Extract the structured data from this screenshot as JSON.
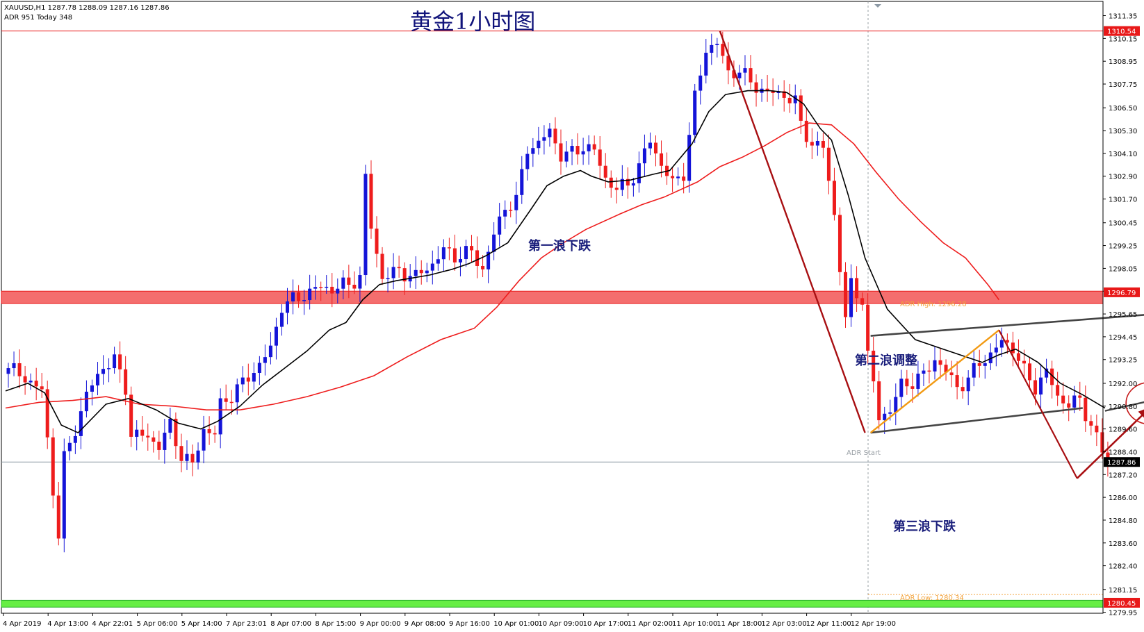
{
  "header": {
    "symbol_line": "XAUUSD,H1  1287.78 1288.09 1287.16 1287.86",
    "adr_line": "ADR 951  Today 348"
  },
  "title": "黄金1小时图",
  "annotations": {
    "wave1": "第一浪下跌",
    "wave2": "第二浪调整",
    "wave3": "第三浪下跌"
  },
  "adr": {
    "high_label": "ADR High: 1296.28",
    "start_label": "ADR Start",
    "low_label": "ADR Low: 1280.34"
  },
  "colors": {
    "bull": "#1414d8",
    "bear": "#ee1c1c",
    "ma_fast": "#000000",
    "ma_slow": "#ee1c1c",
    "resistance_band": "#f46e6e",
    "support_band": "#66ee44",
    "wave_arrow": "#a80f12",
    "channel": "#444444",
    "sub_wave": "#f29a12"
  },
  "chart_data": {
    "type": "candlestick",
    "symbol": "XAUUSD",
    "timeframe": "H1",
    "ylim": [
      1279.9,
      1312.1
    ],
    "yticks": [
      1311.35,
      1310.15,
      1308.95,
      1307.75,
      1306.5,
      1305.3,
      1304.1,
      1302.9,
      1301.7,
      1300.45,
      1299.25,
      1298.05,
      1296.85,
      1295.65,
      1294.45,
      1293.25,
      1292.0,
      1290.8,
      1289.6,
      1288.4,
      1287.2,
      1286.0,
      1284.8,
      1283.6,
      1282.4,
      1281.15,
      1279.95
    ],
    "ytick_labels": [
      "1311.35",
      "1310.15",
      "1308.95",
      "1307.75",
      "1306.50",
      "1305.30",
      "1304.10",
      "1302.90",
      "1301.70",
      "1300.45",
      "1299.25",
      "1298.05",
      "1296.85",
      "1295.65",
      "1294.45",
      "1293.25",
      "1292.00",
      "1290.80",
      "1289.60",
      "1288.40",
      "1287.20",
      "1286.00",
      "1284.80",
      "1283.60",
      "1282.40",
      "1281.15",
      "1279.95"
    ],
    "xtick_labels": [
      "4 Apr 2019",
      "4 Apr 13:00",
      "4 Apr 22:01",
      "5 Apr 06:00",
      "5 Apr 14:00",
      "7 Apr 23:01",
      "8 Apr 07:00",
      "8 Apr 15:00",
      "9 Apr 00:00",
      "9 Apr 08:00",
      "9 Apr 16:00",
      "10 Apr 01:00",
      "10 Apr 09:00",
      "10 Apr 17:00",
      "11 Apr 02:00",
      "11 Apr 10:00",
      "11 Apr 18:00",
      "12 Apr 03:00",
      "12 Apr 11:00",
      "12 Apr 19:00"
    ],
    "price_labels": [
      {
        "value": 1310.54,
        "text": "1310.54",
        "style": "red"
      },
      {
        "value": 1296.79,
        "text": "1296.79",
        "style": "red"
      },
      {
        "value": 1287.86,
        "text": "1287.86",
        "style": "black"
      },
      {
        "value": 1280.45,
        "text": "1280.45",
        "style": "red"
      }
    ],
    "levels": {
      "resistance_line": 1310.54,
      "resistance_band": [
        1296.2,
        1296.85
      ],
      "support_band": [
        1280.22,
        1280.58
      ],
      "current_price": 1287.86,
      "adr_low": 1280.9
    },
    "anchor_points": [
      [
        0,
        1292.8
      ],
      [
        3,
        1292.3
      ],
      [
        6,
        1291.6
      ],
      [
        8,
        1286.4
      ],
      [
        9,
        1284.0
      ],
      [
        10,
        1288.0
      ],
      [
        12,
        1289.6
      ],
      [
        14,
        1291.4
      ],
      [
        17,
        1292.9
      ],
      [
        19,
        1293.2
      ],
      [
        21,
        1291.8
      ],
      [
        22,
        1289.3
      ],
      [
        25,
        1289.2
      ],
      [
        27,
        1288.7
      ],
      [
        29,
        1289.8
      ],
      [
        31,
        1288.2
      ],
      [
        33,
        1287.7
      ],
      [
        35,
        1289.6
      ],
      [
        37,
        1289.3
      ],
      [
        38,
        1290.9
      ],
      [
        40,
        1291.4
      ],
      [
        42,
        1292.0
      ],
      [
        45,
        1293.0
      ],
      [
        47,
        1293.8
      ],
      [
        49,
        1296.1
      ],
      [
        52,
        1296.5
      ],
      [
        55,
        1297.0
      ],
      [
        58,
        1297.0
      ],
      [
        61,
        1297.2
      ],
      [
        63,
        1297.6
      ],
      [
        64,
        1302.8
      ],
      [
        65,
        1300.2
      ],
      [
        66,
        1298.8
      ],
      [
        67,
        1297.6
      ],
      [
        70,
        1297.9
      ],
      [
        73,
        1297.6
      ],
      [
        76,
        1298.3
      ],
      [
        78,
        1299.0
      ],
      [
        80,
        1298.7
      ],
      [
        83,
        1298.9
      ],
      [
        85,
        1298.0
      ],
      [
        87,
        1299.8
      ],
      [
        89,
        1301.3
      ],
      [
        91,
        1301.6
      ],
      [
        93,
        1304.4
      ],
      [
        95,
        1304.6
      ],
      [
        97,
        1305.3
      ],
      [
        99,
        1304.0
      ],
      [
        101,
        1304.1
      ],
      [
        103,
        1304.5
      ],
      [
        105,
        1304.2
      ],
      [
        107,
        1302.8
      ],
      [
        109,
        1302.2
      ],
      [
        111,
        1302.5
      ],
      [
        113,
        1303.4
      ],
      [
        115,
        1304.8
      ],
      [
        117,
        1303.5
      ],
      [
        119,
        1302.5
      ],
      [
        121,
        1303.1
      ],
      [
        123,
        1307.0
      ],
      [
        125,
        1309.6
      ],
      [
        127,
        1309.9
      ],
      [
        129,
        1308.3
      ],
      [
        131,
        1308.5
      ],
      [
        133,
        1307.8
      ],
      [
        136,
        1307.3
      ],
      [
        139,
        1307.2
      ],
      [
        141,
        1306.8
      ],
      [
        142,
        1305.6
      ],
      [
        144,
        1304.6
      ],
      [
        146,
        1304.4
      ],
      [
        148,
        1300.9
      ],
      [
        150,
        1295.3
      ],
      [
        151,
        1297.2
      ],
      [
        153,
        1296.4
      ],
      [
        154,
        1293.4
      ],
      [
        155,
        1292.0
      ],
      [
        156,
        1290.2
      ],
      [
        158,
        1290.6
      ],
      [
        160,
        1291.9
      ],
      [
        162,
        1292.1
      ],
      [
        164,
        1292.4
      ],
      [
        166,
        1293.3
      ],
      [
        168,
        1292.6
      ],
      [
        170,
        1291.8
      ],
      [
        172,
        1292.2
      ],
      [
        174,
        1293.1
      ],
      [
        176,
        1293.5
      ],
      [
        178,
        1294.2
      ],
      [
        180,
        1293.9
      ],
      [
        182,
        1292.6
      ],
      [
        184,
        1291.8
      ],
      [
        186,
        1292.6
      ],
      [
        188,
        1291.3
      ],
      [
        190,
        1290.9
      ],
      [
        192,
        1291.1
      ],
      [
        194,
        1289.8
      ],
      [
        196,
        1288.4
      ],
      [
        197,
        1287.86
      ]
    ],
    "ma_fast_points": [
      [
        0,
        1291.6
      ],
      [
        4,
        1292.0
      ],
      [
        7,
        1291.5
      ],
      [
        10,
        1289.8
      ],
      [
        13,
        1289.4
      ],
      [
        18,
        1290.9
      ],
      [
        22,
        1291.2
      ],
      [
        27,
        1290.6
      ],
      [
        31,
        1289.9
      ],
      [
        35,
        1289.6
      ],
      [
        38,
        1290.0
      ],
      [
        42,
        1290.8
      ],
      [
        46,
        1291.9
      ],
      [
        50,
        1292.8
      ],
      [
        54,
        1293.7
      ],
      [
        58,
        1294.8
      ],
      [
        61,
        1295.2
      ],
      [
        64,
        1296.4
      ],
      [
        67,
        1297.2
      ],
      [
        70,
        1297.4
      ],
      [
        76,
        1297.7
      ],
      [
        80,
        1298.0
      ],
      [
        83,
        1298.3
      ],
      [
        86,
        1298.7
      ],
      [
        90,
        1299.4
      ],
      [
        94,
        1301.1
      ],
      [
        97,
        1302.4
      ],
      [
        100,
        1302.9
      ],
      [
        103,
        1303.2
      ],
      [
        105,
        1302.9
      ],
      [
        108,
        1302.6
      ],
      [
        112,
        1302.7
      ],
      [
        116,
        1303.0
      ],
      [
        119,
        1303.2
      ],
      [
        123,
        1304.6
      ],
      [
        126,
        1306.3
      ],
      [
        129,
        1307.2
      ],
      [
        133,
        1307.4
      ],
      [
        137,
        1307.4
      ],
      [
        140,
        1307.3
      ],
      [
        143,
        1306.7
      ],
      [
        146,
        1305.4
      ],
      [
        148,
        1304.8
      ],
      [
        151,
        1301.9
      ],
      [
        154,
        1298.6
      ],
      [
        158,
        1295.9
      ],
      [
        163,
        1294.3
      ],
      [
        168,
        1293.8
      ],
      [
        172,
        1293.4
      ],
      [
        175,
        1293.1
      ],
      [
        178,
        1293.5
      ],
      [
        181,
        1293.8
      ],
      [
        185,
        1293.1
      ],
      [
        189,
        1292.0
      ],
      [
        193,
        1291.4
      ],
      [
        197,
        1290.7
      ]
    ],
    "ma_slow_points": [
      [
        0,
        1290.7
      ],
      [
        6,
        1291.0
      ],
      [
        12,
        1291.1
      ],
      [
        18,
        1291.3
      ],
      [
        24,
        1290.9
      ],
      [
        30,
        1290.8
      ],
      [
        36,
        1290.6
      ],
      [
        42,
        1290.6
      ],
      [
        48,
        1290.9
      ],
      [
        54,
        1291.3
      ],
      [
        60,
        1291.8
      ],
      [
        66,
        1292.4
      ],
      [
        72,
        1293.4
      ],
      [
        78,
        1294.3
      ],
      [
        84,
        1294.9
      ],
      [
        88,
        1296.0
      ],
      [
        92,
        1297.4
      ],
      [
        96,
        1298.6
      ],
      [
        100,
        1299.4
      ],
      [
        104,
        1300.1
      ],
      [
        110,
        1300.9
      ],
      [
        114,
        1301.4
      ],
      [
        118,
        1301.8
      ],
      [
        124,
        1302.6
      ],
      [
        128,
        1303.4
      ],
      [
        132,
        1303.9
      ],
      [
        136,
        1304.5
      ],
      [
        140,
        1305.2
      ],
      [
        144,
        1305.7
      ],
      [
        148,
        1305.6
      ],
      [
        152,
        1304.6
      ],
      [
        156,
        1303.1
      ],
      [
        160,
        1301.7
      ],
      [
        164,
        1300.5
      ],
      [
        168,
        1299.4
      ],
      [
        172,
        1298.6
      ],
      [
        176,
        1297.2
      ],
      [
        178,
        1296.4
      ]
    ],
    "drawings": {
      "wave1_line": [
        [
          128,
          1310.54
        ],
        [
          154,
          1289.4
        ]
      ],
      "channel_upper": [
        [
          155,
          1294.5
        ],
        [
          204,
          1295.6
        ]
      ],
      "channel_lower": [
        [
          155,
          1289.4
        ],
        [
          193,
          1290.7
        ]
      ],
      "sub_wave_up": [
        [
          155,
          1289.4
        ],
        [
          178,
          1294.8
        ]
      ],
      "wave_down2": [
        [
          178,
          1294.8
        ],
        [
          192,
          1287.0
        ]
      ],
      "wave_up3": [
        [
          192,
          1287.0
        ],
        [
          205,
          1290.7
        ]
      ],
      "wave_down3": [
        [
          205,
          1290.7
        ],
        [
          218,
          1282.4
        ]
      ],
      "circle_center": [
        205,
        1290.95
      ],
      "channel_upper_ext": [
        [
          197,
          1290.55
        ],
        [
          210,
          1291.4
        ]
      ]
    }
  }
}
